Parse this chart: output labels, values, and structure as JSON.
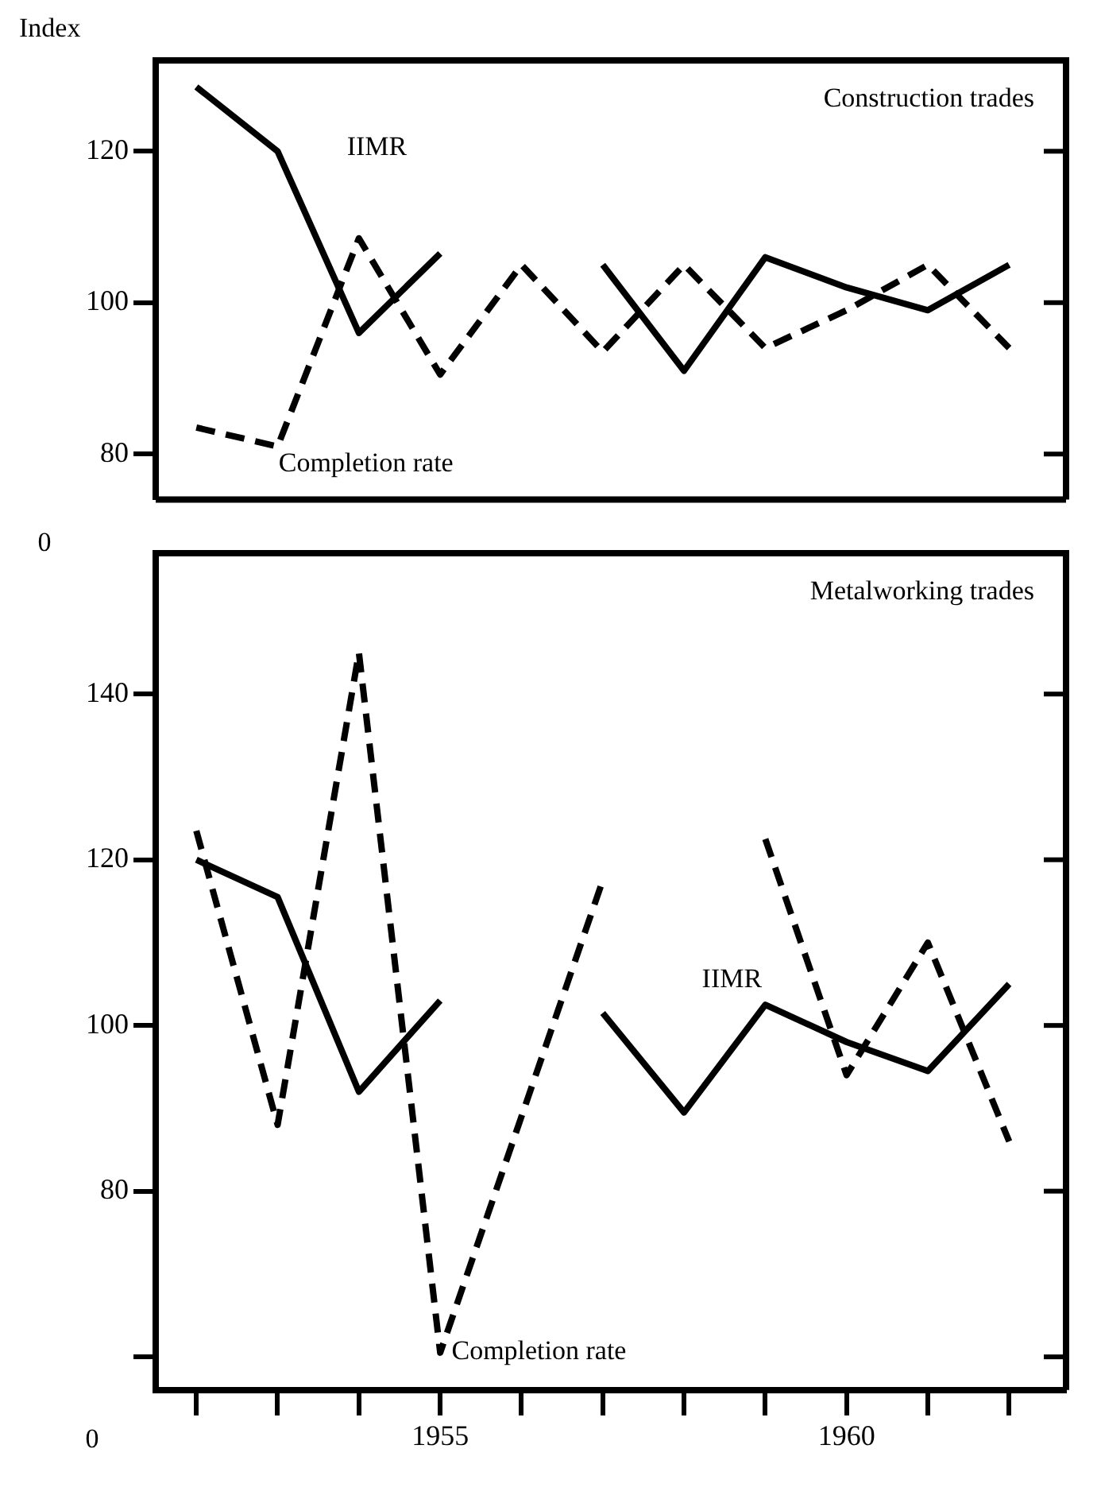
{
  "chart_data": [
    {
      "type": "line",
      "title": "Construction trades",
      "ylabel": "Index",
      "x": [
        1952,
        1953,
        1954,
        1955,
        1956,
        1957,
        1958,
        1959,
        1960,
        1961,
        1962
      ],
      "xlim": [
        1951.5,
        1962.7
      ],
      "ylim": [
        74,
        132
      ],
      "yticks": [
        80,
        100,
        120
      ],
      "tick_labels": "y",
      "grid": false,
      "legend": false,
      "marker": "none",
      "series": [
        {
          "name": "IIMR",
          "color": "#000000",
          "line_style": "solid",
          "values": [
            128.5,
            120,
            96,
            106.5,
            null,
            105,
            91,
            106,
            102,
            99,
            105
          ]
        },
        {
          "name": "Completion rate",
          "color": "#000000",
          "line_style": "dashed",
          "values": [
            83.5,
            81,
            108.5,
            90.5,
            105,
            93.5,
            105,
            94,
            99,
            105,
            94
          ]
        }
      ]
    },
    {
      "type": "line",
      "title": "Metalworking trades",
      "x": [
        1952,
        1953,
        1954,
        1955,
        1956,
        1957,
        1958,
        1959,
        1960,
        1961,
        1962
      ],
      "xlim": [
        1951.5,
        1962.7
      ],
      "ylim": [
        56,
        157
      ],
      "yticks": [
        {
          "value": 60,
          "label": null
        },
        80,
        100,
        120,
        140
      ],
      "xticks": [
        {
          "value": 1952,
          "label": null
        },
        {
          "value": 1953,
          "label": null
        },
        {
          "value": 1954,
          "label": null
        },
        1955,
        {
          "value": 1956,
          "label": null
        },
        {
          "value": 1957,
          "label": null
        },
        {
          "value": 1958,
          "label": null
        },
        {
          "value": 1959,
          "label": null
        },
        1960,
        {
          "value": 1961,
          "label": null
        },
        {
          "value": 1962,
          "label": null
        }
      ],
      "grid": false,
      "legend": false,
      "marker": "none",
      "annotations": [
        "0",
        "0"
      ],
      "series": [
        {
          "name": "IIMR",
          "color": "#000000",
          "line_style": "solid",
          "values": [
            120,
            115.5,
            92,
            103,
            null,
            101.5,
            89.5,
            102.5,
            98,
            94.5,
            105
          ]
        },
        {
          "name": "Completion rate",
          "color": "#000000",
          "line_style": "dashed",
          "x": [
            1952,
            1953,
            1954,
            1955,
            1957,
            1958,
            1959,
            1960,
            1961,
            1962
          ],
          "values": [
            123.5,
            88,
            145,
            60.5,
            117.5,
            null,
            122.5,
            94,
            110,
            86
          ]
        }
      ]
    }
  ]
}
